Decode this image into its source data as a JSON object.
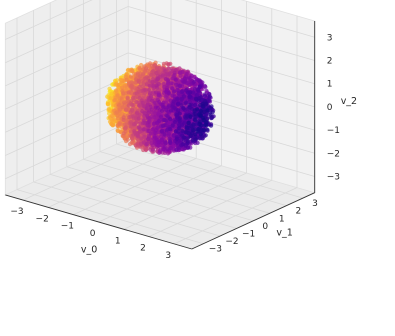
{
  "chart_data": {
    "type": "scatter",
    "projection": "3d",
    "title": "",
    "colormap": "plasma",
    "color_by": "v_0",
    "marker_alpha": 0.7,
    "grid": true,
    "pane_color": "#f2f2f2",
    "grid_color": "#d9d9d9",
    "point_cloud": {
      "shape": "ball",
      "center": [
        0,
        0,
        0
      ],
      "radius": 1.8,
      "n_points_estimate": 4000
    },
    "axes": {
      "x": {
        "label": "v_0",
        "ticks": [
          -3,
          -2,
          -1,
          0,
          1,
          2,
          3
        ],
        "tick_labels": [
          "−3",
          "−2",
          "−1",
          "0",
          "1",
          "2",
          "3"
        ],
        "lim": [
          -3.7,
          3.7
        ]
      },
      "y": {
        "label": "v_1",
        "ticks": [
          -3,
          -2,
          -1,
          0,
          1,
          2,
          3
        ],
        "tick_labels": [
          "−3",
          "−2",
          "−1",
          "0",
          "1",
          "2",
          "3"
        ],
        "lim": [
          -3.7,
          3.7
        ]
      },
      "z": {
        "label": "v_2",
        "ticks": [
          -3,
          -2,
          -1,
          0,
          1,
          2,
          3
        ],
        "tick_labels": [
          "−3",
          "−2",
          "−1",
          "0",
          "1",
          "2",
          "3"
        ],
        "lim": [
          -3.7,
          3.7
        ]
      }
    }
  }
}
